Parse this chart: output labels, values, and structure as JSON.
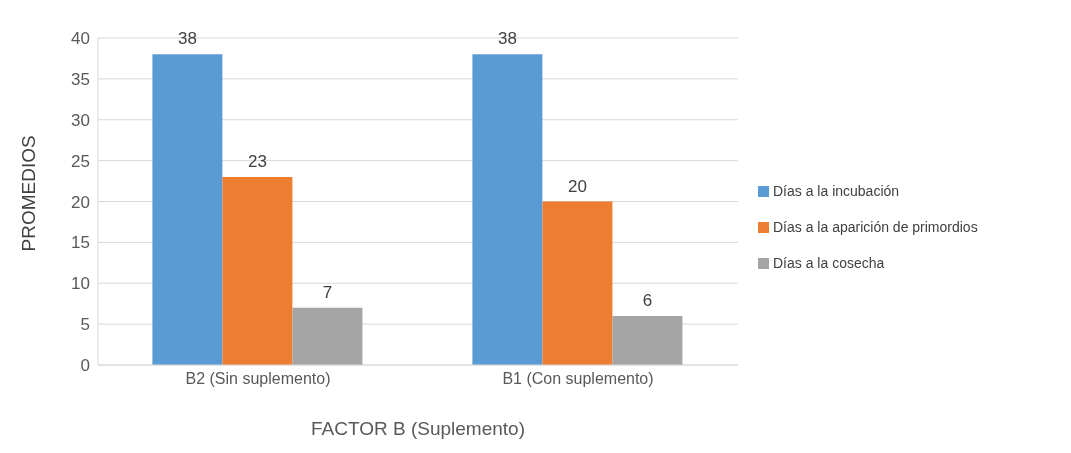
{
  "chart_data": {
    "type": "bar",
    "xlabel": "FACTOR B (Suplemento)",
    "ylabel": "PROMEDIOS",
    "categories": [
      "B2 (Sin suplemento)",
      "B1 (Con suplemento)"
    ],
    "series": [
      {
        "name": "Días a la incubación",
        "color": "#5b9bd5",
        "values": [
          38,
          38
        ]
      },
      {
        "name": "Días a la aparición de primordios",
        "color": "#ed7d31",
        "values": [
          23,
          20
        ]
      },
      {
        "name": "Días a la cosecha",
        "color": "#a5a5a5",
        "values": [
          7,
          6
        ]
      }
    ],
    "ylim": [
      0,
      40
    ],
    "yticks": [
      0,
      5,
      10,
      15,
      20,
      25,
      30,
      35,
      40
    ],
    "grid": "y",
    "legend": "right",
    "data_labels": true
  }
}
